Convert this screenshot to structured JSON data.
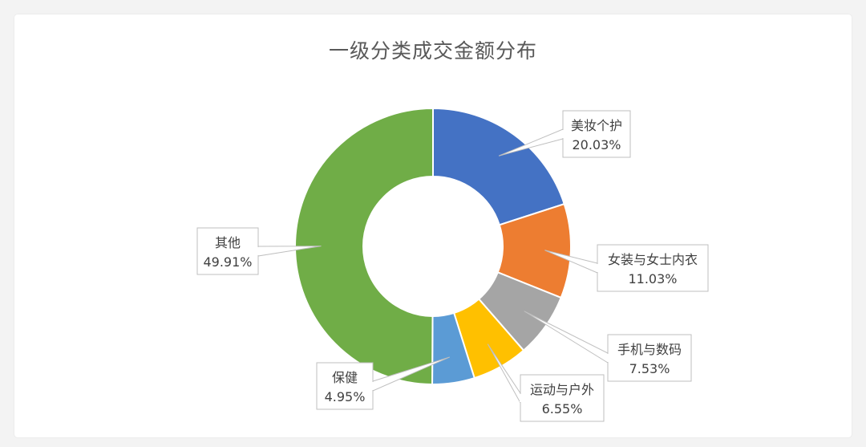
{
  "chart_data": {
    "type": "pie",
    "variant": "donut",
    "title": "一级分类成交金额分布",
    "slices": [
      {
        "label": "美妆个护",
        "value": 20.03,
        "display": "20.03%",
        "color": "#4472c4"
      },
      {
        "label": "女装与女士内衣",
        "value": 11.03,
        "display": "11.03%",
        "color": "#ed7d31"
      },
      {
        "label": "手机与数码",
        "value": 7.53,
        "display": "7.53%",
        "color": "#a5a5a5"
      },
      {
        "label": "运动与户外",
        "value": 6.55,
        "display": "6.55%",
        "color": "#ffc000"
      },
      {
        "label": "保健",
        "value": 4.95,
        "display": "4.95%",
        "color": "#5b9bd5"
      },
      {
        "label": "其他",
        "value": 49.91,
        "display": "49.91%",
        "color": "#70ad47"
      }
    ]
  }
}
